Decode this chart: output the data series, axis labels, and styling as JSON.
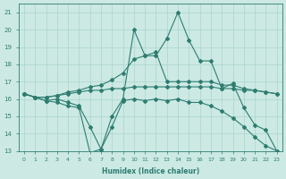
{
  "xlabel": "Humidex (Indice chaleur)",
  "background_color": "#cce9e4",
  "grid_color": "#aad4ce",
  "line_color": "#2e7d70",
  "xlim": [
    -0.5,
    23.5
  ],
  "ylim": [
    13,
    21.5
  ],
  "yticks": [
    13,
    14,
    15,
    16,
    17,
    18,
    19,
    20,
    21
  ],
  "xticks": [
    0,
    1,
    2,
    3,
    4,
    5,
    6,
    7,
    8,
    9,
    10,
    11,
    12,
    13,
    14,
    15,
    16,
    17,
    18,
    19,
    20,
    21,
    22,
    23
  ],
  "line1_x": [
    0,
    1,
    2,
    3,
    4,
    5,
    6,
    7,
    8,
    9,
    10,
    11,
    12,
    13,
    14,
    15,
    16,
    17,
    18,
    19,
    20,
    21,
    22,
    23
  ],
  "line1_y": [
    16.3,
    16.1,
    15.9,
    15.8,
    15.6,
    15.5,
    12.9,
    13.1,
    14.4,
    15.9,
    16.0,
    15.9,
    16.0,
    15.9,
    16.0,
    15.8,
    15.8,
    15.6,
    15.3,
    14.9,
    14.4,
    13.8,
    13.3,
    13.0
  ],
  "line2_x": [
    0,
    1,
    2,
    3,
    4,
    5,
    6,
    7,
    8,
    9,
    10,
    11,
    12,
    13,
    14,
    15,
    16,
    17,
    18,
    19,
    20,
    21,
    22,
    23
  ],
  "line2_y": [
    16.3,
    16.1,
    15.9,
    16.0,
    15.8,
    15.6,
    14.4,
    13.1,
    15.0,
    16.0,
    20.0,
    18.5,
    18.5,
    19.5,
    21.0,
    19.4,
    18.2,
    18.2,
    16.6,
    16.9,
    15.5,
    14.5,
    14.2,
    13.0
  ],
  "line3_x": [
    0,
    1,
    2,
    3,
    4,
    5,
    6,
    7,
    8,
    9,
    10,
    11,
    12,
    13,
    14,
    15,
    16,
    17,
    18,
    19,
    20,
    21,
    22,
    23
  ],
  "line3_y": [
    16.3,
    16.1,
    16.1,
    16.2,
    16.3,
    16.4,
    16.5,
    16.5,
    16.6,
    16.6,
    16.7,
    16.7,
    16.7,
    16.7,
    16.7,
    16.7,
    16.7,
    16.7,
    16.6,
    16.6,
    16.5,
    16.5,
    16.4,
    16.3
  ],
  "line4_x": [
    0,
    1,
    2,
    3,
    4,
    5,
    6,
    7,
    8,
    9,
    10,
    11,
    12,
    13,
    14,
    15,
    16,
    17,
    18,
    19,
    20,
    21,
    22,
    23
  ],
  "line4_y": [
    16.3,
    16.1,
    16.1,
    16.2,
    16.4,
    16.5,
    16.7,
    16.8,
    17.1,
    17.5,
    18.3,
    18.5,
    18.7,
    17.0,
    17.0,
    17.0,
    17.0,
    17.0,
    16.8,
    16.8,
    16.6,
    16.5,
    16.4,
    16.3
  ]
}
